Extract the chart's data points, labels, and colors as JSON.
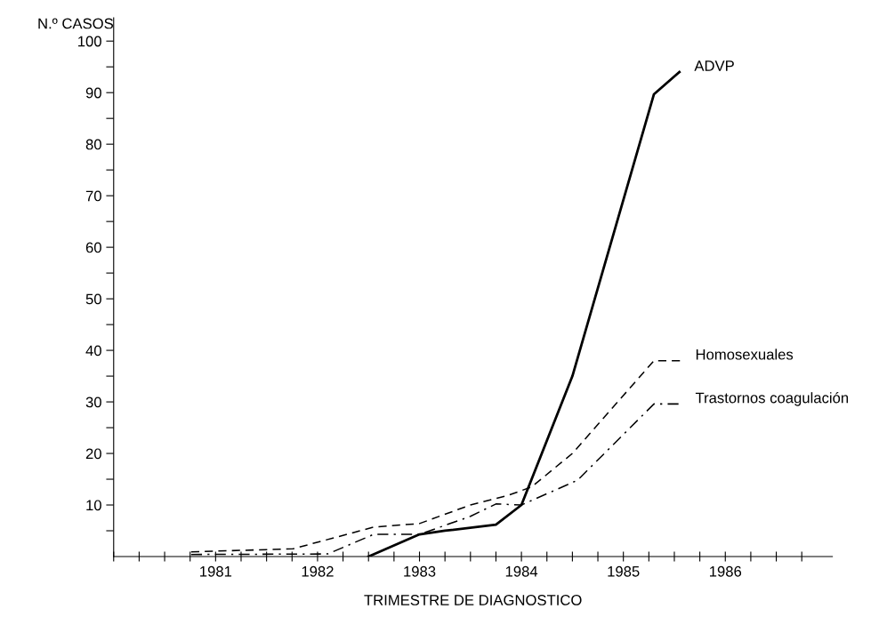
{
  "chart_data": {
    "type": "line",
    "xlabel": "TRIMESTRE DE DIAGNOSTICO",
    "ylabel": "N.º CASOS",
    "xlim": [
      1980,
      1987.05
    ],
    "ylim": [
      0,
      104.5
    ],
    "xticks": [
      {
        "value": 1980,
        "label": null
      },
      {
        "value": 1980.25,
        "label": null
      },
      {
        "value": 1980.5,
        "label": null
      },
      {
        "value": 1980.75,
        "label": null
      },
      1981,
      {
        "value": 1981.25,
        "label": null
      },
      {
        "value": 1981.5,
        "label": null
      },
      {
        "value": 1981.75,
        "label": null
      },
      1982,
      {
        "value": 1982.25,
        "label": null
      },
      {
        "value": 1982.5,
        "label": null
      },
      {
        "value": 1982.75,
        "label": null
      },
      1983,
      {
        "value": 1983.25,
        "label": null
      },
      {
        "value": 1983.5,
        "label": null
      },
      {
        "value": 1983.75,
        "label": null
      },
      1984,
      {
        "value": 1984.25,
        "label": null
      },
      {
        "value": 1984.5,
        "label": null
      },
      {
        "value": 1984.75,
        "label": null
      },
      1985,
      {
        "value": 1985.25,
        "label": null
      },
      {
        "value": 1985.5,
        "label": null
      },
      {
        "value": 1985.75,
        "label": null
      },
      1986,
      {
        "value": 1986.25,
        "label": null
      },
      {
        "value": 1986.5,
        "label": null
      },
      {
        "value": 1986.75,
        "label": null
      }
    ],
    "yticks": [
      {
        "value": 5,
        "label": null
      },
      10,
      {
        "value": 15,
        "label": null
      },
      20,
      {
        "value": 25,
        "label": null
      },
      30,
      {
        "value": 35,
        "label": null
      },
      40,
      {
        "value": 45,
        "label": null
      },
      50,
      {
        "value": 55,
        "label": null
      },
      60,
      {
        "value": 65,
        "label": null
      },
      70,
      {
        "value": 75,
        "label": null
      },
      80,
      {
        "value": 85,
        "label": null
      },
      90,
      {
        "value": 95,
        "label": null
      },
      100
    ],
    "grid": false,
    "legend": false,
    "marker": "none",
    "series": [
      {
        "name": "ADVP",
        "color": "#000000",
        "line_style": "solid",
        "x": [
          1982.5,
          1983.0,
          1983.25,
          1983.75,
          1984.0,
          1984.5,
          1985.3,
          1985.55
        ],
        "values": [
          0,
          4.3,
          5,
          6.2,
          10,
          35,
          89.7,
          94
        ]
      },
      {
        "name": "Homosexuales",
        "color": "#000000",
        "line_style": "dashed",
        "x": [
          1980.76,
          1981.76,
          1982.55,
          1983.0,
          1983.5,
          1983.86,
          1984.1,
          1984.5,
          1985.3,
          1985.56
        ],
        "values": [
          0.9,
          1.5,
          5.7,
          6.4,
          10,
          11.8,
          13.5,
          20,
          38,
          38
        ]
      },
      {
        "name": "Trastornos coagulación",
        "color": "#000000",
        "line_style": "dashdot",
        "x": [
          1980.76,
          1982.1,
          1982.55,
          1983.0,
          1983.5,
          1983.75,
          1984.0,
          1984.55,
          1985.3,
          1985.56
        ],
        "values": [
          0.4,
          0.5,
          4.3,
          4.3,
          7.8,
          10.2,
          10,
          14.8,
          29.6,
          29.6
        ]
      }
    ]
  }
}
